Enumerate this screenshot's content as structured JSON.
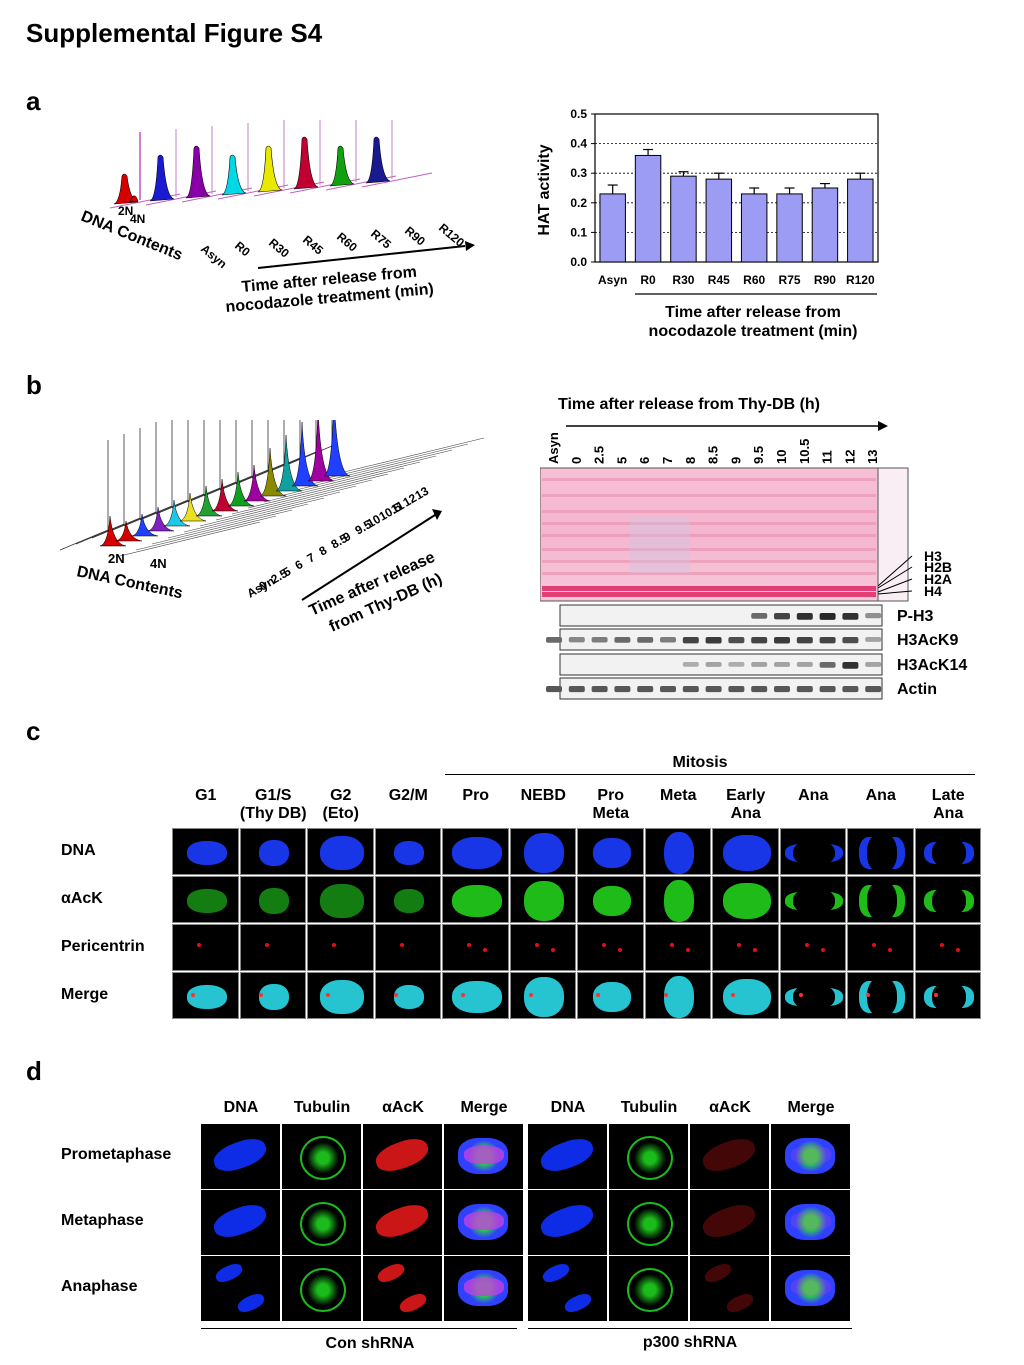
{
  "figure": {
    "title": "Supplemental Figure S4"
  },
  "panels": {
    "a": "a",
    "b": "b",
    "c": "c",
    "d": "d"
  },
  "panel_a": {
    "flow": {
      "dna_contents": "DNA Contents",
      "n2": "2N",
      "n4": "4N",
      "samples": [
        "Asyn",
        "R0",
        "R30",
        "R45",
        "R60",
        "R75",
        "R90",
        "R120"
      ],
      "axis_line1": "Time after release from",
      "axis_line2": "nocodazole  treatment (min)",
      "peak_colors": [
        "#d40000",
        "#1a1ad0",
        "#8a00a8",
        "#00d8e8",
        "#e8e800",
        "#c00030",
        "#10a010",
        "#1a1a90"
      ]
    },
    "chart_data": {
      "type": "bar",
      "categories": [
        "Asyn",
        "R0",
        "R30",
        "R45",
        "R60",
        "R75",
        "R90",
        "R120"
      ],
      "values": [
        0.23,
        0.36,
        0.29,
        0.28,
        0.23,
        0.23,
        0.25,
        0.28
      ],
      "errors": [
        0.03,
        0.02,
        0.015,
        0.02,
        0.02,
        0.02,
        0.015,
        0.02
      ],
      "ylabel": "HAT activity",
      "ylim": [
        0,
        0.5
      ],
      "yticks": [
        "0.0",
        "0.1",
        "0.2",
        "0.3",
        "0.4",
        "0.5"
      ],
      "xlabel_line1": "Time after release from",
      "xlabel_line2": "nocodazole  treatment (min)",
      "bar_color": "#9c9cf4",
      "grid": "dotted horizontal"
    }
  },
  "panel_b": {
    "flow": {
      "dna_contents": "DNA Contents",
      "n2": "2N",
      "n4": "4N",
      "axis_line1": "Time after release",
      "axis_line2": "from Thy-DB (h)",
      "samples": [
        "Asyn",
        "0",
        "2.5",
        "5",
        "6",
        "7",
        "8",
        "8.5",
        "9",
        "9.5",
        "10",
        "10.5",
        "11",
        "12",
        "13"
      ]
    },
    "blot": {
      "title": "Time after release from Thy-DB (h)",
      "lanes": [
        "Asyn",
        "0",
        "2.5",
        "5",
        "6",
        "7",
        "8",
        "8.5",
        "9",
        "9.5",
        "10",
        "10.5",
        "11",
        "12",
        "13"
      ],
      "histones": [
        "H3",
        "H2B",
        "H2A",
        "H4"
      ],
      "rows": [
        "P-H3",
        "H3AcK9",
        "H3AcK14",
        "Actin"
      ],
      "row_intensity": {
        "P-H3": [
          0,
          0,
          0,
          0,
          0,
          0,
          0,
          0,
          0,
          0.6,
          0.8,
          0.9,
          0.95,
          0.9,
          0.4
        ],
        "H3AcK9": [
          0.6,
          0.45,
          0.5,
          0.6,
          0.6,
          0.5,
          0.8,
          0.85,
          0.75,
          0.8,
          0.85,
          0.8,
          0.8,
          0.75,
          0.3
        ],
        "H3AcK14": [
          0,
          0,
          0,
          0,
          0,
          0,
          0.25,
          0.3,
          0.25,
          0.3,
          0.3,
          0.3,
          0.6,
          0.9,
          0.3
        ],
        "Actin": [
          0.7,
          0.7,
          0.7,
          0.7,
          0.7,
          0.7,
          0.7,
          0.7,
          0.7,
          0.7,
          0.7,
          0.7,
          0.7,
          0.7,
          0.7
        ]
      }
    }
  },
  "panel_c": {
    "mitosis_label": "Mitosis",
    "columns": [
      "G1",
      "G1/S\n(Thy DB)",
      "G2\n(Eto)",
      "G2/M",
      "Pro",
      "NEBD",
      "Pro\nMeta",
      "Meta",
      "Early\nAna",
      "Ana",
      "Ana",
      "Late\nAna"
    ],
    "rows": [
      "DNA",
      "αAcK",
      "Pericentrin",
      "Merge"
    ],
    "row_colors": [
      "#1b3cff",
      "#22d01c",
      "#e01010",
      "#2ad8e8"
    ]
  },
  "panel_d": {
    "columns": [
      "DNA",
      "Tubulin",
      "αAcK",
      "Merge",
      "DNA",
      "Tubulin",
      "αAcK",
      "Merge"
    ],
    "rows": [
      "Prometaphase",
      "Metaphase",
      "Anaphase"
    ],
    "group_left": "Con shRNA",
    "group_right": "p300 shRNA",
    "channel_colors": [
      "#1030ff",
      "#20d020",
      "#e01818",
      "#a040e0"
    ]
  }
}
